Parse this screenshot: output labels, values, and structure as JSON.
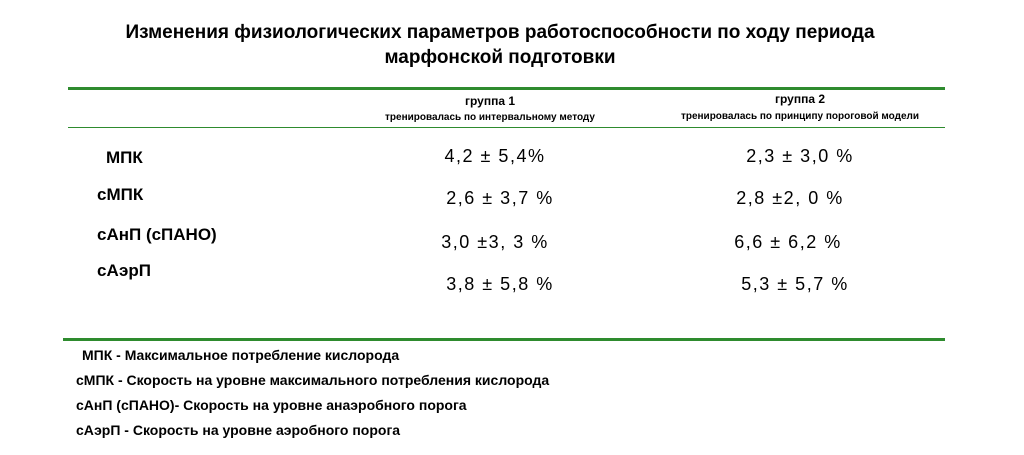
{
  "header": {
    "title_lines": [
      "Изменения физиологических параметров работоспособности по ходу периода",
      "марфонской подготовки"
    ]
  },
  "table": {
    "columns": [
      {
        "name": "группа 1",
        "subtitle": "тренировалась по интервальному методу"
      },
      {
        "name": "группа 2",
        "subtitle": "тренировалась по принципу пороговой модели"
      }
    ],
    "rows": [
      {
        "label": "МПК",
        "cells": [
          "4,2 ± 5,4%",
          "2,3 ± 3,0 %"
        ]
      },
      {
        "label": "сМПК",
        "cells": [
          "2,6 ± 3,7 %",
          "2,8 ±2, 0 %"
        ]
      },
      {
        "label": "сАнП (сПАНО)",
        "cells": [
          "3,0 ±3, 3 %",
          "6,6 ± 6,2 %"
        ]
      },
      {
        "label": "сАэрП",
        "cells": [
          "3,8 ± 5,8 %",
          "5,3 ± 5,7 %"
        ]
      }
    ]
  },
  "notes": [
    "МПК - Максимальное потребление кислорода",
    "сМПК - Скорость на уровне максимального потребления кислорода",
    "сАнП (сПАНО)- Скорость на уровне анаэробного порога",
    "сАэрП - Скорость на уровне аэробного порога"
  ]
}
